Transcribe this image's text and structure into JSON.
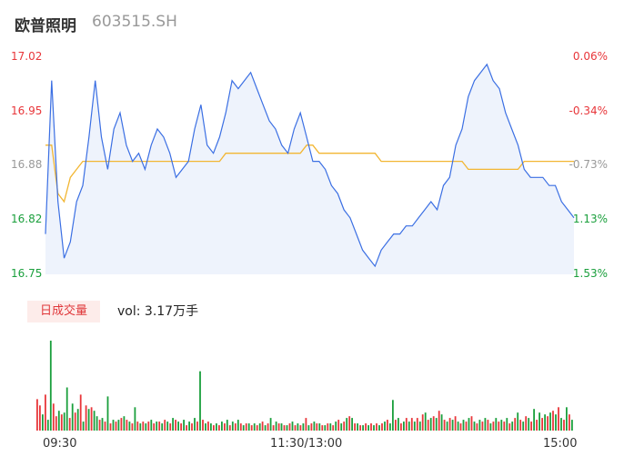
{
  "header": {
    "name": "欧普照明",
    "code": "603515.SH"
  },
  "colors": {
    "up": "#e8363a",
    "down": "#1a9f3c",
    "price_line": "#3b6fe3",
    "avg_line": "#f2b632",
    "area_fill": "#eef3fc",
    "neutral": "#999999"
  },
  "volume_tab": {
    "label": "日成交量",
    "text": "vol: 3.17万手"
  },
  "chart_data": [
    {
      "type": "line",
      "x_ticks": [
        "09:30",
        "11:30/13:00",
        "15:00"
      ],
      "y_left_ticks": [
        "17.02",
        "16.95",
        "16.88",
        "16.82",
        "16.75"
      ],
      "y_right_ticks": [
        "0.06%",
        "-0.34%",
        "-0.73%",
        "-1.13%",
        "-1.53%"
      ],
      "ylim": [
        16.75,
        17.02
      ],
      "series": [
        {
          "values": [
            16.8,
            16.99,
            16.84,
            16.77,
            16.79,
            16.84,
            16.86,
            16.92,
            16.99,
            16.92,
            16.88,
            16.93,
            16.95,
            16.91,
            16.89,
            16.9,
            16.88,
            16.91,
            16.93,
            16.92,
            16.9,
            16.87,
            16.88,
            16.89,
            16.93,
            16.96,
            16.91,
            16.9,
            16.92,
            16.95,
            16.99,
            16.98,
            16.99,
            17.0,
            16.98,
            16.96,
            16.94,
            16.93,
            16.91,
            16.9,
            16.93,
            16.95,
            16.92,
            16.89,
            16.89,
            16.88,
            16.86,
            16.85,
            16.83,
            16.82,
            16.8,
            16.78,
            16.77,
            16.76,
            16.78,
            16.79,
            16.8,
            16.8,
            16.81,
            16.81,
            16.82,
            16.83,
            16.84,
            16.83,
            16.86,
            16.87,
            16.91,
            16.93,
            16.97,
            16.99,
            17.0,
            17.01,
            16.99,
            16.98,
            16.95,
            16.93,
            16.91,
            16.88,
            16.87,
            16.87,
            16.87,
            16.86,
            16.86,
            16.84,
            16.83,
            16.82
          ]
        },
        {
          "values": [
            16.91,
            16.91,
            16.85,
            16.84,
            16.87,
            16.88,
            16.89,
            16.89,
            16.89,
            16.89,
            16.89,
            16.89,
            16.89,
            16.89,
            16.89,
            16.89,
            16.89,
            16.89,
            16.89,
            16.89,
            16.89,
            16.89,
            16.89,
            16.89,
            16.89,
            16.89,
            16.89,
            16.89,
            16.89,
            16.9,
            16.9,
            16.9,
            16.9,
            16.9,
            16.9,
            16.9,
            16.9,
            16.9,
            16.9,
            16.9,
            16.9,
            16.9,
            16.91,
            16.91,
            16.9,
            16.9,
            16.9,
            16.9,
            16.9,
            16.9,
            16.9,
            16.9,
            16.9,
            16.9,
            16.89,
            16.89,
            16.89,
            16.89,
            16.89,
            16.89,
            16.89,
            16.89,
            16.89,
            16.89,
            16.89,
            16.89,
            16.89,
            16.89,
            16.88,
            16.88,
            16.88,
            16.88,
            16.88,
            16.88,
            16.88,
            16.88,
            16.88,
            16.89,
            16.89,
            16.89,
            16.89,
            16.89,
            16.89,
            16.89,
            16.89,
            16.89
          ]
        }
      ]
    },
    {
      "type": "bar",
      "values": [
        35,
        28,
        18,
        40,
        12,
        100,
        30,
        16,
        22,
        18,
        20,
        48,
        14,
        30,
        20,
        24,
        40,
        10,
        28,
        24,
        26,
        22,
        16,
        12,
        14,
        10,
        38,
        8,
        12,
        10,
        12,
        14,
        16,
        12,
        10,
        8,
        26,
        10,
        8,
        10,
        8,
        10,
        12,
        8,
        10,
        10,
        8,
        12,
        10,
        8,
        14,
        12,
        10,
        8,
        12,
        6,
        10,
        8,
        14,
        10,
        66,
        12,
        8,
        10,
        8,
        6,
        8,
        6,
        10,
        8,
        12,
        6,
        10,
        8,
        12,
        8,
        6,
        8,
        8,
        6,
        8,
        6,
        8,
        10,
        6,
        8,
        14,
        6,
        10,
        8,
        8,
        6,
        6,
        8,
        10,
        6,
        8,
        6,
        8,
        14,
        6,
        8,
        10,
        8,
        8,
        6,
        6,
        8,
        8,
        6,
        10,
        12,
        8,
        10,
        14,
        16,
        14,
        8,
        8,
        6,
        6,
        8,
        6,
        8,
        6,
        8,
        6,
        8,
        10,
        12,
        8,
        34,
        12,
        14,
        8,
        10,
        14,
        10,
        14,
        10,
        14,
        10,
        18,
        20,
        12,
        14,
        16,
        14,
        22,
        18,
        12,
        10,
        14,
        12,
        16,
        10,
        8,
        12,
        10,
        14,
        16,
        10,
        8,
        12,
        10,
        14,
        12,
        8,
        10,
        14,
        10,
        12,
        10,
        14,
        8,
        10,
        14,
        20,
        12,
        10,
        16,
        14,
        10,
        24,
        12,
        20,
        14,
        18,
        16,
        20,
        22,
        18,
        26,
        14,
        12,
        26,
        18,
        12
      ],
      "bar_colors": [
        "up",
        "up",
        "down",
        "up",
        "down",
        "down",
        "up",
        "up",
        "down",
        "up",
        "down",
        "down",
        "up",
        "down",
        "up",
        "down",
        "up",
        "down",
        "up",
        "down",
        "up",
        "down",
        "down",
        "up",
        "down",
        "up",
        "down",
        "up",
        "down",
        "up",
        "down",
        "up",
        "down",
        "up",
        "down",
        "up",
        "down",
        "up",
        "down",
        "up",
        "down",
        "up",
        "down",
        "up",
        "down",
        "up",
        "down",
        "up",
        "down",
        "up",
        "down",
        "up",
        "down",
        "up",
        "down",
        "up",
        "down",
        "up",
        "down",
        "up",
        "down",
        "up",
        "down",
        "up",
        "down",
        "up",
        "down",
        "up",
        "down",
        "up",
        "down",
        "up",
        "down",
        "up",
        "down",
        "up",
        "down",
        "up",
        "down",
        "up",
        "down",
        "up",
        "down",
        "up",
        "down",
        "up",
        "down",
        "up",
        "down",
        "up",
        "down",
        "up",
        "down",
        "up",
        "down",
        "up",
        "down",
        "up",
        "down",
        "up",
        "down",
        "up",
        "down",
        "up",
        "down",
        "up",
        "down",
        "up",
        "down",
        "up",
        "down",
        "up",
        "down",
        "up",
        "down",
        "up",
        "down",
        "up",
        "down",
        "up",
        "down",
        "up",
        "down",
        "up",
        "down",
        "up",
        "down",
        "up",
        "down",
        "up",
        "down",
        "down",
        "up",
        "down",
        "up",
        "down",
        "up",
        "down",
        "up",
        "down",
        "up",
        "down",
        "up",
        "down",
        "up",
        "down",
        "up",
        "down",
        "up",
        "down",
        "up",
        "down",
        "up",
        "down",
        "up",
        "down",
        "up",
        "down",
        "up",
        "down",
        "up",
        "down",
        "up",
        "down",
        "up",
        "down",
        "up",
        "down",
        "up",
        "down",
        "up",
        "down",
        "up",
        "down",
        "up",
        "down",
        "up",
        "down",
        "up",
        "down",
        "up",
        "down",
        "up",
        "down",
        "up",
        "down",
        "up",
        "down",
        "up",
        "down",
        "up",
        "down",
        "up",
        "down",
        "up",
        "down",
        "up",
        "down",
        "up",
        "up"
      ]
    }
  ]
}
